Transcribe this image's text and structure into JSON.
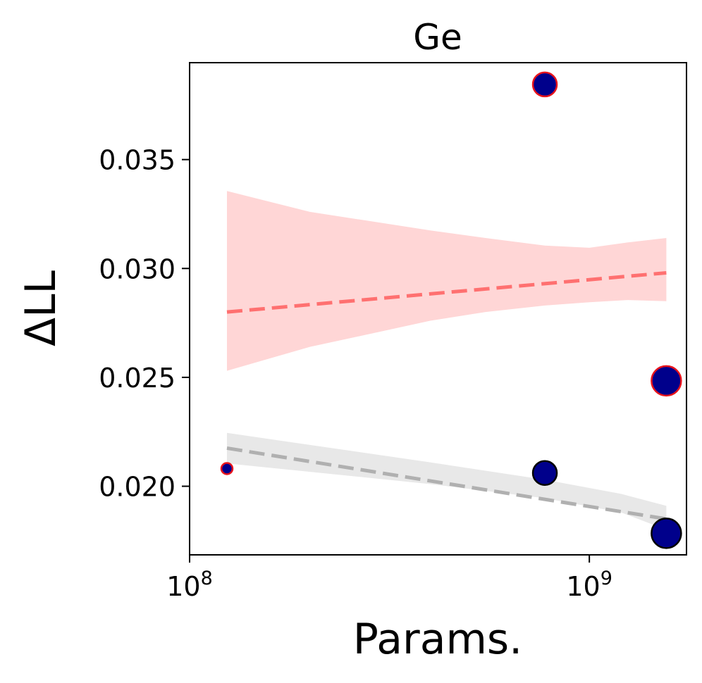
{
  "chart_data": {
    "type": "scatter",
    "title": "Ge",
    "xlabel": "Params.",
    "ylabel": "ΔLL",
    "x_scale": "log",
    "xlim": [
      100000000,
      1750000000
    ],
    "ylim": [
      0.01685,
      0.03945
    ],
    "x_ticks": [
      {
        "value": 100000000,
        "base": "10",
        "exp": "8"
      },
      {
        "value": 1000000000,
        "base": "10",
        "exp": "9"
      }
    ],
    "y_ticks": [
      {
        "value": 0.02,
        "label": "0.020"
      },
      {
        "value": 0.025,
        "label": "0.025"
      },
      {
        "value": 0.03,
        "label": "0.030"
      },
      {
        "value": 0.035,
        "label": "0.035"
      }
    ],
    "grid": false,
    "point_color": "#00008b",
    "series": [
      {
        "edge_color": "#e8141c",
        "points": [
          {
            "x": 124000000,
            "y": 0.02081,
            "size": 8
          },
          {
            "x": 774000000,
            "y": 0.03845,
            "size": 17
          },
          {
            "x": 1558000000,
            "y": 0.02484,
            "size": 21
          }
        ],
        "trend": {
          "x": [
            124000000,
            1558000000
          ],
          "y": [
            0.028,
            0.0298
          ],
          "color": "#ff7070"
        },
        "band": {
          "color": "#ffd6d6",
          "x": [
            124000000,
            200000000,
            300000000,
            400000000,
            550000000,
            774000000,
            1000000000,
            1250000000,
            1558000000
          ],
          "upper": [
            0.03356,
            0.0326,
            0.0321,
            0.03175,
            0.0314,
            0.03105,
            0.03095,
            0.0312,
            0.0314
          ],
          "lower": [
            0.0253,
            0.0264,
            0.0271,
            0.0276,
            0.028,
            0.0283,
            0.02845,
            0.02855,
            0.0285
          ]
        }
      },
      {
        "edge_color": "#000000",
        "points": [
          {
            "x": 774000000,
            "y": 0.02061,
            "size": 17
          },
          {
            "x": 1558000000,
            "y": 0.01784,
            "size": 21
          }
        ],
        "trend": {
          "x": [
            124000000,
            1558000000
          ],
          "y": [
            0.02175,
            0.0185
          ],
          "color": "#b0b0b0"
        },
        "band": {
          "color": "#e8e8e8",
          "x": [
            124000000,
            400000000,
            774000000,
            1200000000,
            1558000000
          ],
          "upper": [
            0.02245,
            0.0211,
            0.0203,
            0.01965,
            0.0191
          ],
          "lower": [
            0.02105,
            0.0201,
            0.01945,
            0.0188,
            0.018
          ]
        }
      }
    ]
  }
}
